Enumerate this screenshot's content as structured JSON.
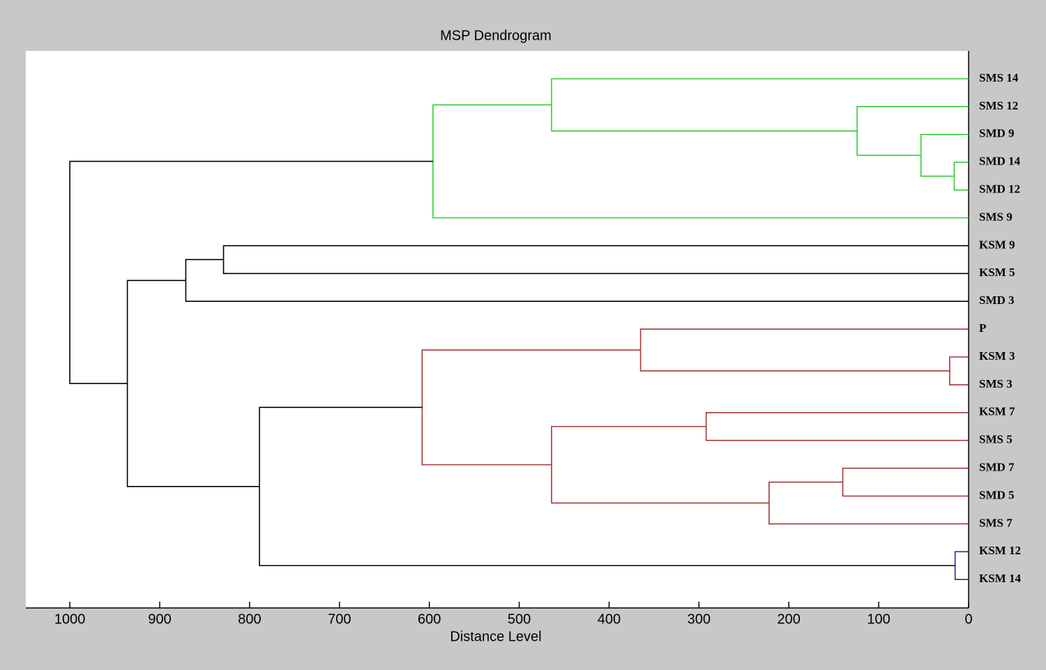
{
  "chart_data": {
    "type": "dendrogram",
    "title": "MSP Dendrogram",
    "xlabel": "Distance Level",
    "xlim": [
      1049,
      0
    ],
    "xticks": [
      1000,
      900,
      800,
      700,
      600,
      500,
      400,
      300,
      200,
      100,
      0
    ],
    "leaves": [
      "SMS 14",
      "SMS 12",
      "SMD 9",
      "SMD 14",
      "SMD 12",
      "SMS 9",
      "KSM 9",
      "KSM 5",
      "SMD 3",
      "P",
      "KSM 3",
      "SMS 3",
      "KSM 7",
      "SMS 5",
      "SMD 7",
      "SMD 5",
      "SMS 7",
      "KSM 12",
      "KSM 14"
    ],
    "links": [
      {
        "children": [
          3,
          4
        ],
        "height": 16,
        "color": "#33cc33"
      },
      {
        "children": [
          2,
          19
        ],
        "height": 53,
        "color": "#33cc33"
      },
      {
        "children": [
          1,
          20
        ],
        "height": 124,
        "color": "#33cc33"
      },
      {
        "children": [
          0,
          21
        ],
        "height": 464,
        "color": "#33cc33"
      },
      {
        "children": [
          22,
          5
        ],
        "height": 596,
        "color": "#33cc33"
      },
      {
        "children": [
          6,
          7
        ],
        "height": 829,
        "color": "#000000"
      },
      {
        "children": [
          24,
          8
        ],
        "height": 871,
        "color": "#000000"
      },
      {
        "children": [
          10,
          11
        ],
        "height": 21,
        "color": "#a0383a"
      },
      {
        "children": [
          9,
          26
        ],
        "height": 365,
        "color": "#a0383a"
      },
      {
        "children": [
          12,
          13
        ],
        "height": 292,
        "color": "#a0383a"
      },
      {
        "children": [
          14,
          15
        ],
        "height": 140,
        "color": "#a0383a"
      },
      {
        "children": [
          29,
          16
        ],
        "height": 222,
        "color": "#a0383a"
      },
      {
        "children": [
          28,
          30
        ],
        "height": 464,
        "color": "#a0383a"
      },
      {
        "children": [
          27,
          31
        ],
        "height": 608,
        "color": "#a0383a"
      },
      {
        "children": [
          17,
          18
        ],
        "height": 15,
        "color": "#2b2b8a"
      },
      {
        "children": [
          32,
          33
        ],
        "height": 789,
        "color": "#000000"
      },
      {
        "children": [
          25,
          34
        ],
        "height": 936,
        "color": "#000000"
      },
      {
        "children": [
          23,
          35
        ],
        "height": 1000,
        "color": "#000000"
      }
    ]
  }
}
